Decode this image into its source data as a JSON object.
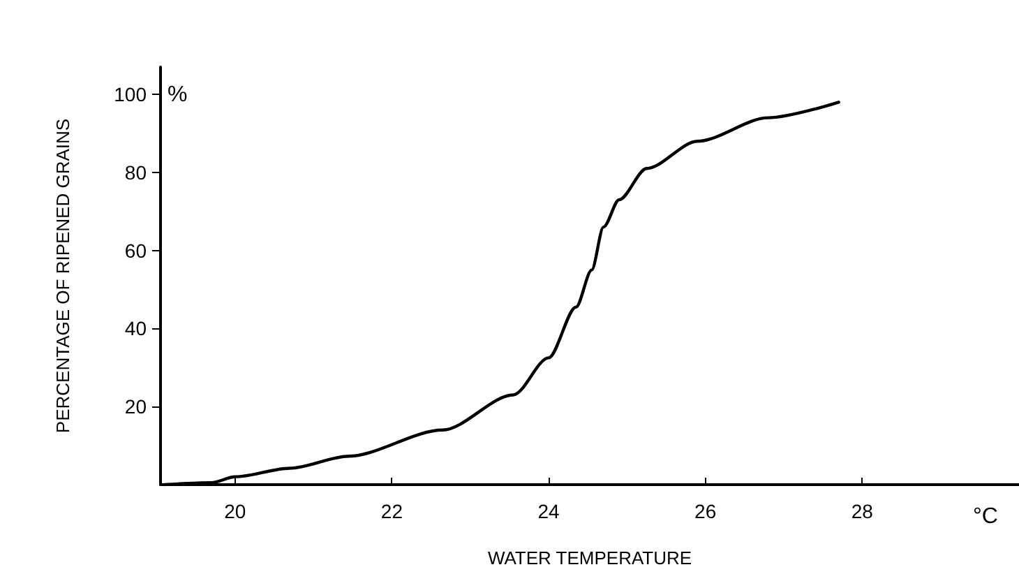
{
  "chart_data": {
    "type": "line",
    "xlabel": "WATER TEMPERATURE",
    "ylabel": "PERCENTAGE OF RIPENED GRAINS",
    "annotations": [
      "%",
      "°C"
    ],
    "x": [
      19.1,
      19.7,
      20,
      20.7,
      21.45,
      22.65,
      23.55,
      24,
      24.35,
      24.55,
      24.7,
      24.9,
      25.25,
      25.9,
      26.8,
      27.7
    ],
    "series": [
      {
        "color": "#000000",
        "values": [
          0,
          0.5,
          2,
          4.2,
          7.3,
          14,
          23,
          32.5,
          45.5,
          55,
          66,
          73,
          81,
          88,
          94,
          98
        ]
      }
    ],
    "xlim": [
      19.05,
      30
    ],
    "xticks": [
      20,
      22,
      24,
      26,
      28
    ],
    "ylim": [
      0,
      107
    ],
    "yticks": [
      20,
      40,
      60,
      80,
      100
    ],
    "grid": false,
    "marker": "none",
    "line_style": "solid"
  }
}
